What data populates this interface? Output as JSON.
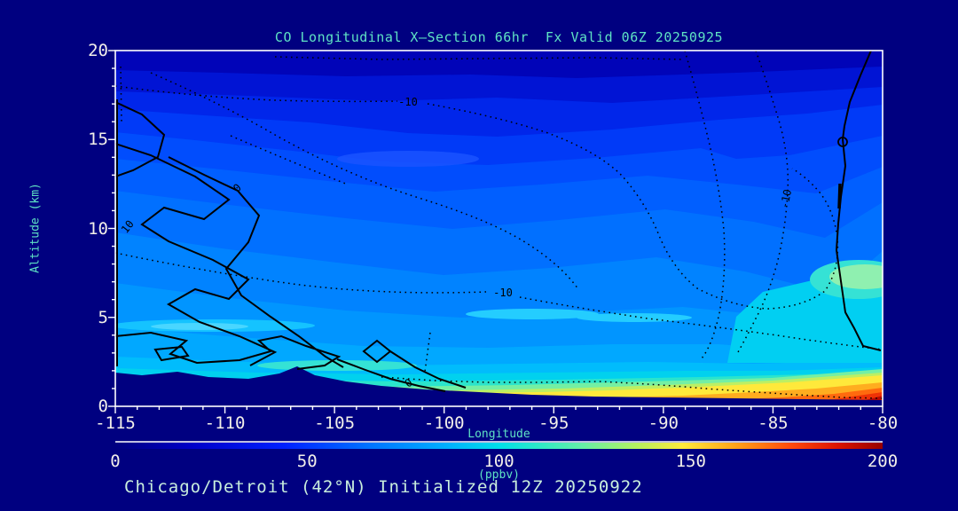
{
  "window": {
    "background": "#000080"
  },
  "title": "CO Longitudinal X—Section 66hr  Fx Valid 06Z 20250925",
  "caption": "Chicago/Detroit (42°N) Initialized 12Z 20250922",
  "axes": {
    "x": {
      "label": "Longitude",
      "ticks": [
        -115,
        -110,
        -105,
        -100,
        -95,
        -90,
        -85,
        -80
      ],
      "range": [
        -115,
        -80
      ],
      "minor_step": 1
    },
    "y": {
      "label": "Altitude (km)",
      "ticks": [
        0,
        5,
        10,
        15,
        20
      ],
      "range": [
        0,
        20
      ],
      "minor_step": 1
    }
  },
  "colorbar": {
    "units": "(ppbv)",
    "ticks": [
      0,
      50,
      100,
      150,
      200
    ],
    "range": [
      0,
      200
    ],
    "gradient": [
      "#000080",
      "#0000C8",
      "#0020FF",
      "#0072FF",
      "#00AEFF",
      "#00DFE9",
      "#2BE8C8",
      "#66EFA6",
      "#B5F05E",
      "#FFE93B",
      "#FFA018",
      "#FF4A0D",
      "#DD1500",
      "#970000"
    ]
  },
  "chart_data": {
    "type": "heatmap",
    "title": "CO Longitudinal X—Section 66hr  Fx Valid 06Z 20250925",
    "xlabel": "Longitude",
    "ylabel": "Altitude (km)",
    "xlim": [
      -115,
      -80
    ],
    "ylim": [
      0,
      20
    ],
    "colorbar": {
      "label": "(ppbv)",
      "min": 0,
      "max": 200,
      "ticks": [
        0,
        50,
        100,
        150,
        200
      ]
    },
    "contour_line_labels": {
      "dashed": "-10",
      "zero": "0",
      "ten": "10"
    },
    "field_summary": {
      "longitudes": [
        -115,
        -110,
        -105,
        -100,
        -95,
        -90,
        -85,
        -80
      ],
      "surface_co_ppbv": [
        60,
        70,
        95,
        115,
        120,
        125,
        150,
        200
      ],
      "co_at_10km_ppbv": [
        70,
        65,
        60,
        55,
        55,
        50,
        50,
        60
      ],
      "co_at_18km_ppbv": [
        25,
        25,
        22,
        20,
        18,
        18,
        20,
        25
      ],
      "terrain_height_km": [
        1.8,
        1.7,
        1.2,
        0.7,
        0.4,
        0.3,
        0.25,
        0.2
      ]
    },
    "legend_position": "bottom",
    "grid": false
  },
  "text_colors": {
    "heading": "#5FE3C4",
    "tick": "#F2EFE9",
    "caption": "#C9EEDD",
    "contour_label": "#000000"
  }
}
